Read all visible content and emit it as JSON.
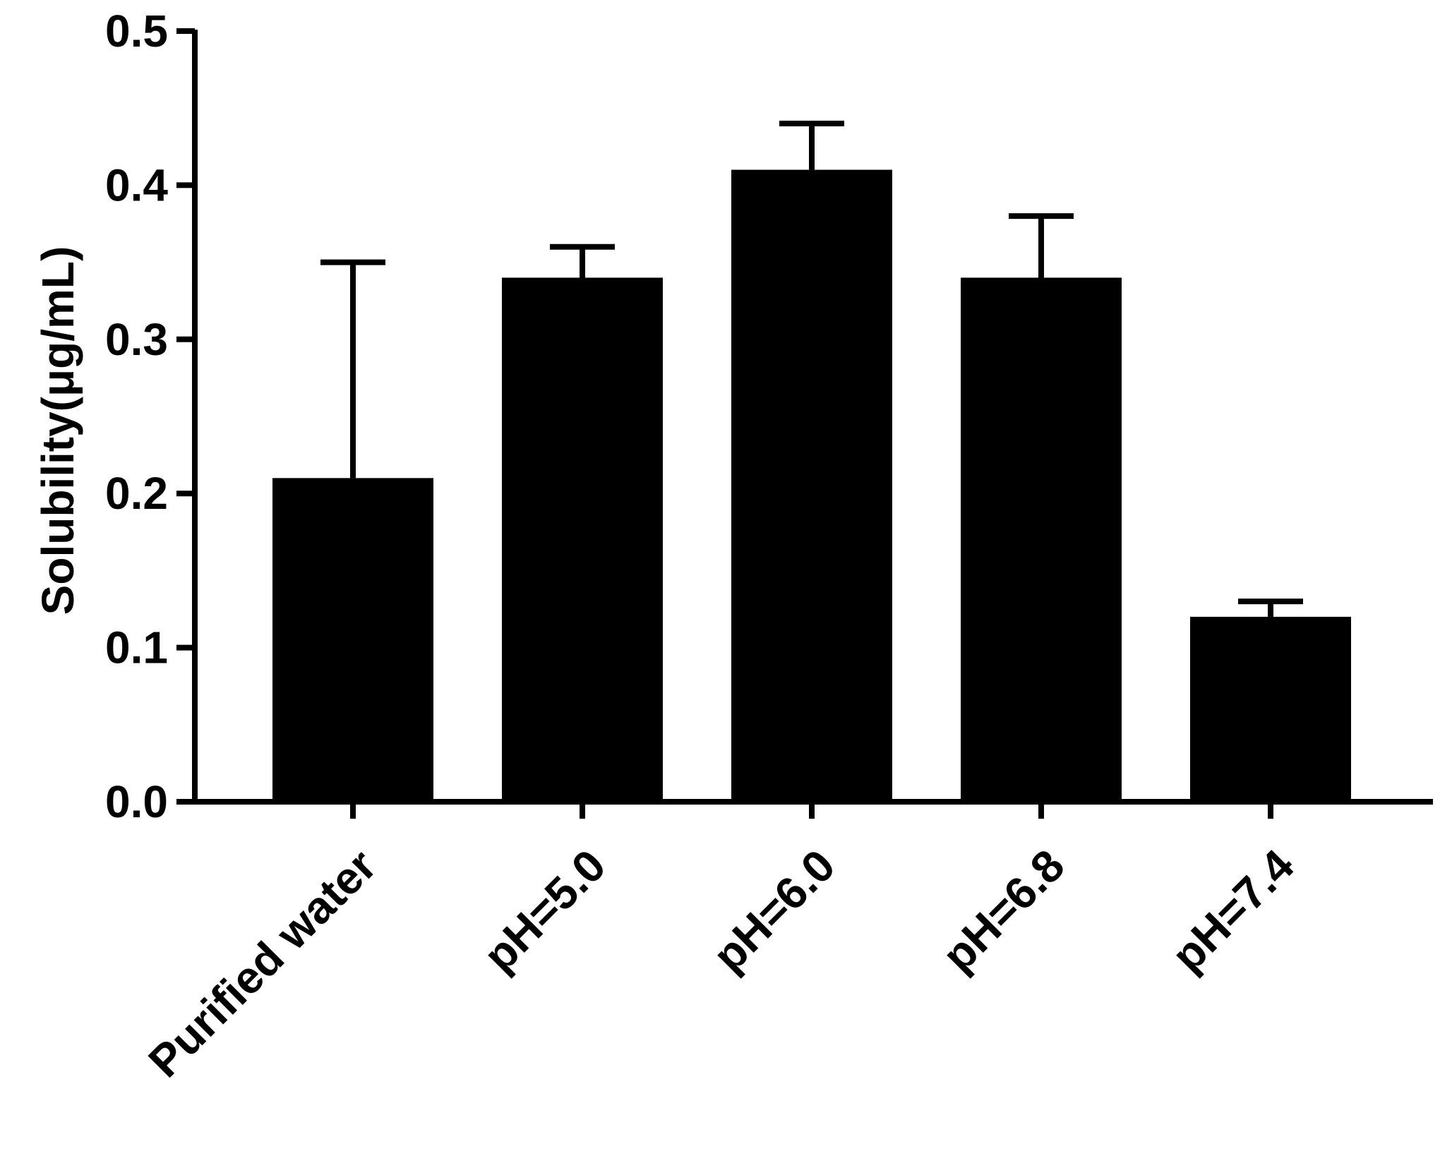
{
  "chart_data": {
    "type": "bar",
    "title": "",
    "xlabel": "",
    "ylabel": "Solubility(μg/mL)",
    "categories": [
      "Purified water",
      "pH=5.0",
      "pH=6.0",
      "pH=6.8",
      "pH=7.4"
    ],
    "values": [
      0.21,
      0.34,
      0.41,
      0.34,
      0.12
    ],
    "error_upper": [
      0.35,
      0.36,
      0.44,
      0.38,
      0.13
    ],
    "ylim": [
      0.0,
      0.5
    ],
    "yticks": [
      "0.0",
      "0.1",
      "0.2",
      "0.3",
      "0.4",
      "0.5"
    ],
    "grid": false,
    "legend": "none",
    "bar_color": "#000000",
    "axis_color": "#000000"
  }
}
